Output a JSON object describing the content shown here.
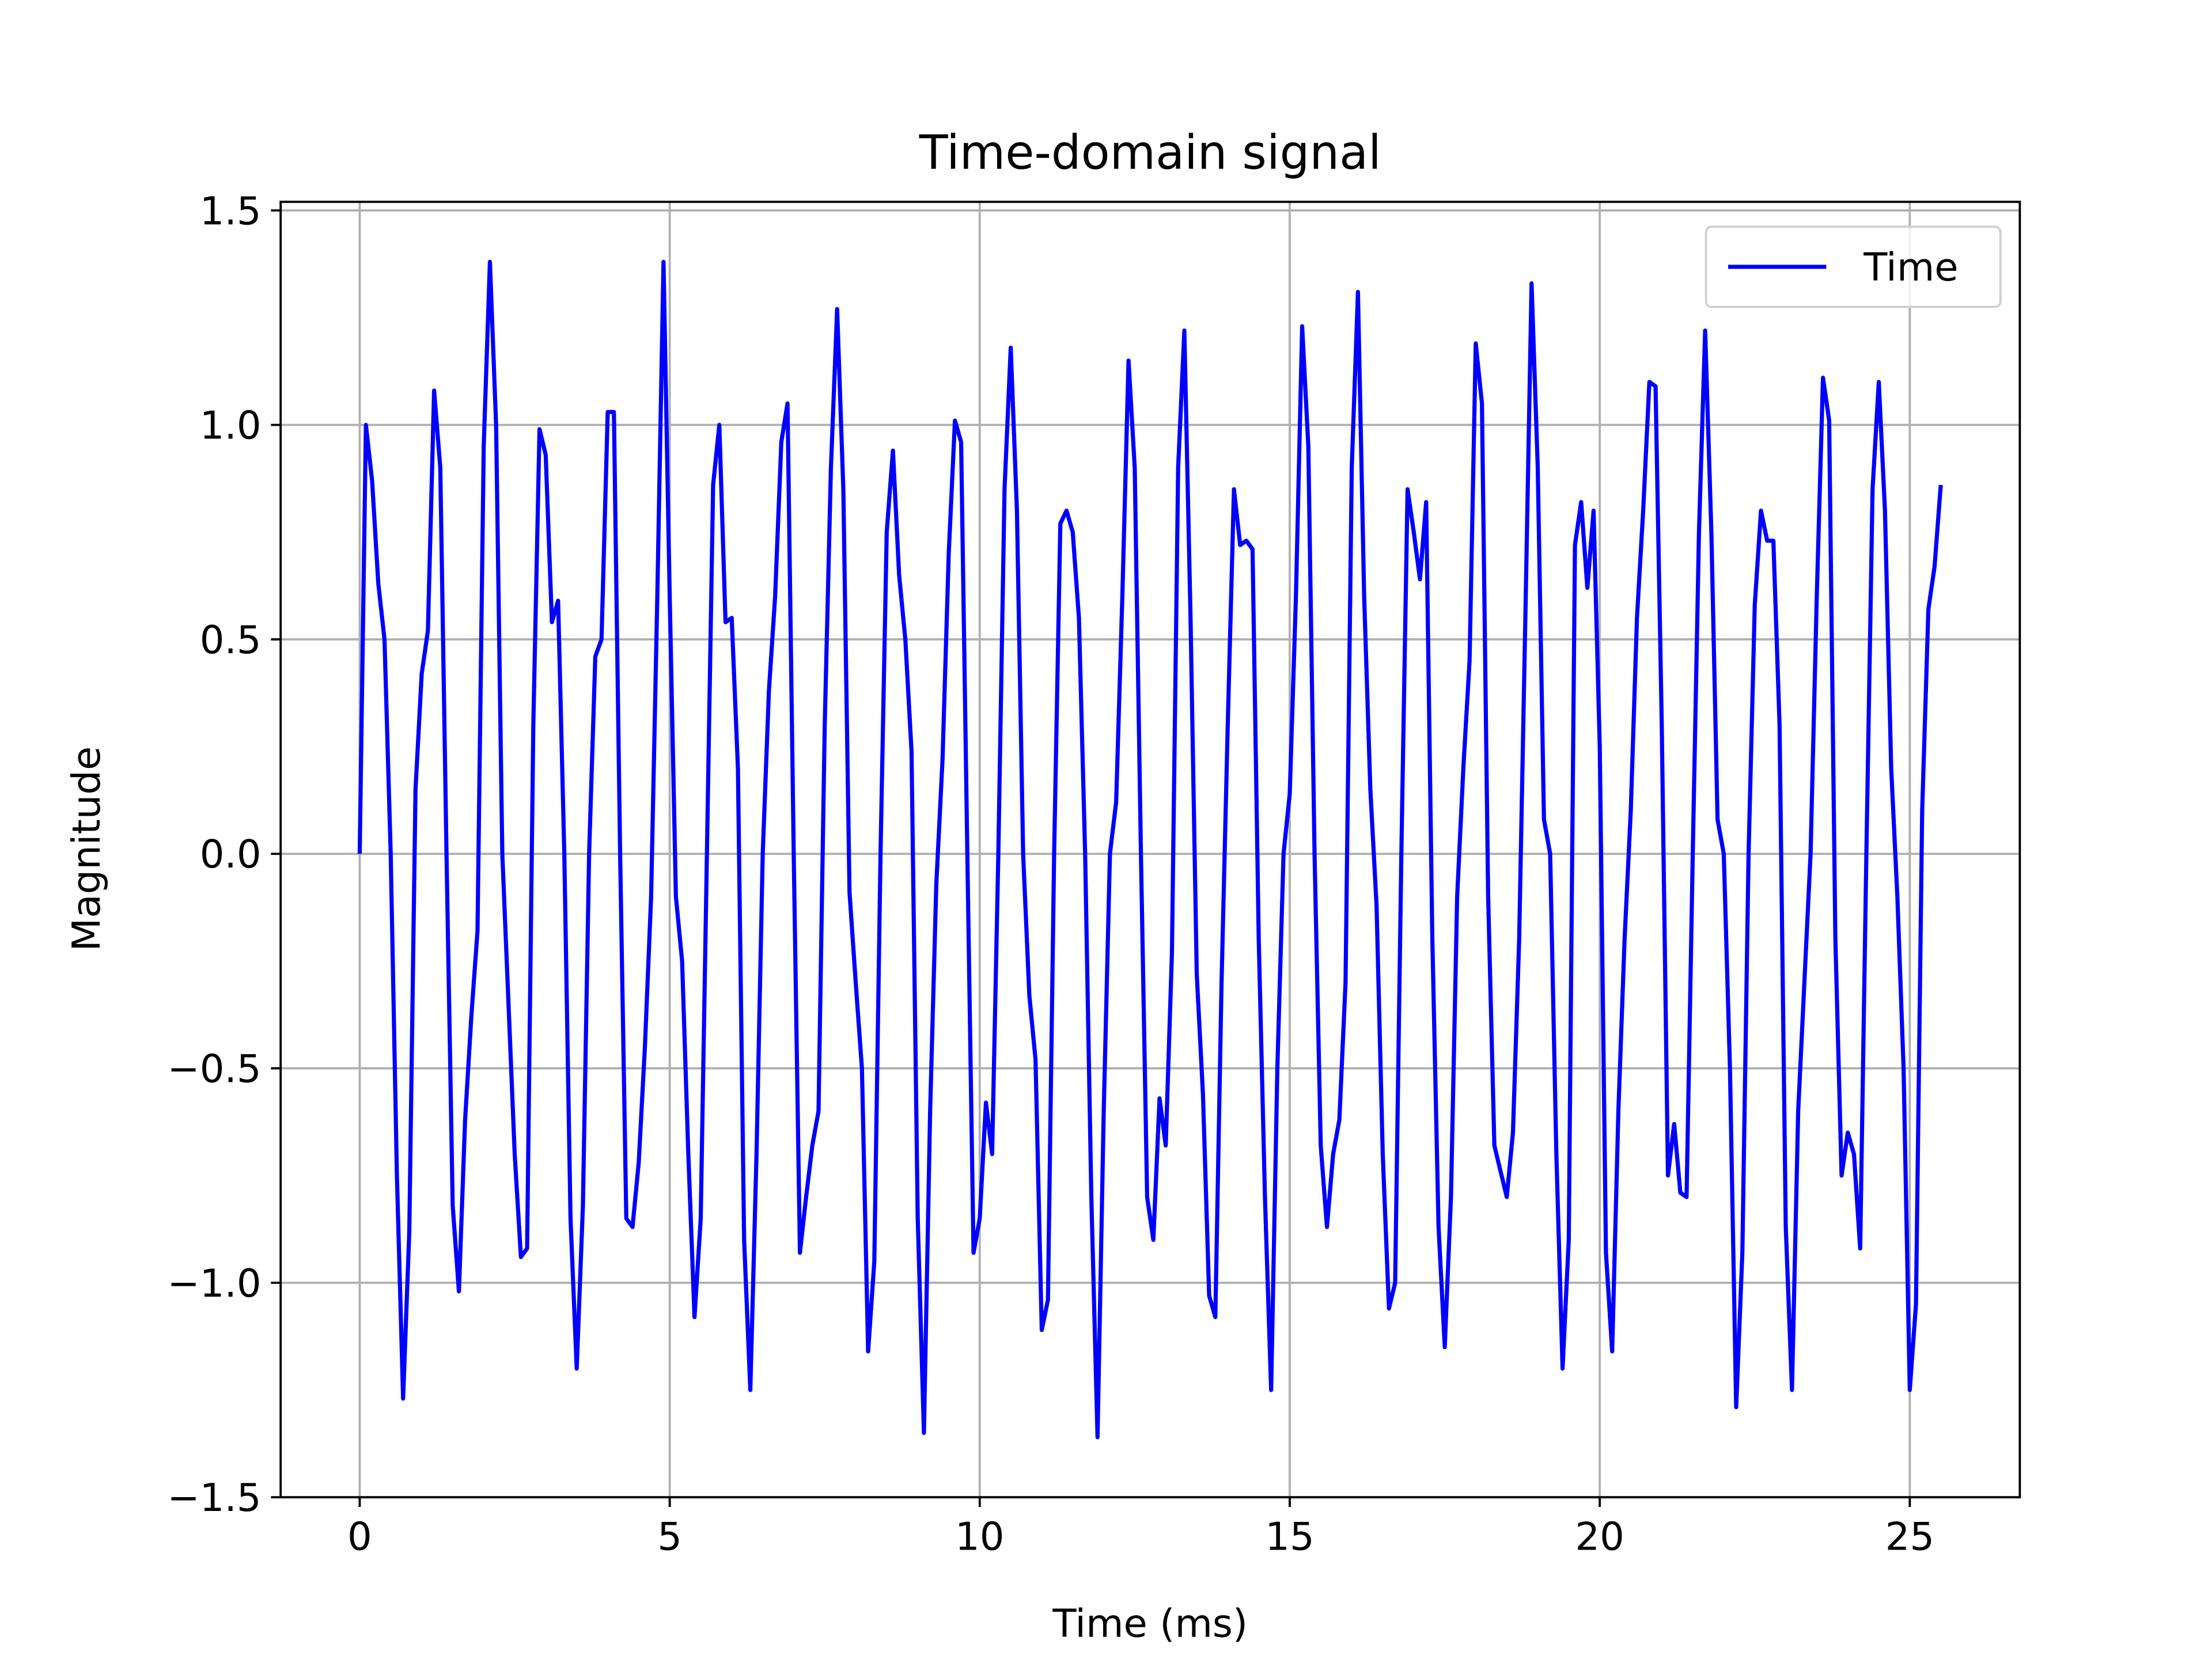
{
  "chart_data": {
    "type": "line",
    "title": "Time-domain signal",
    "x_label": "Time (ms)",
    "y_label": "Magnitude",
    "x": [
      0,
      0.1,
      0.2,
      0.3,
      0.4,
      0.5,
      0.6,
      0.7,
      0.8,
      0.9,
      1,
      1.1,
      1.2,
      1.3,
      1.4,
      1.5,
      1.6,
      1.7,
      1.8,
      1.9,
      2,
      2.1,
      2.2,
      2.3,
      2.4,
      2.5,
      2.6,
      2.7,
      2.8,
      2.9,
      3,
      3.1,
      3.2,
      3.3,
      3.4,
      3.5,
      3.6,
      3.7,
      3.8,
      3.9,
      4,
      4.1,
      4.2,
      4.3,
      4.4,
      4.5,
      4.6,
      4.7,
      4.8,
      4.9,
      5,
      5.1,
      5.2,
      5.3,
      5.4,
      5.5,
      5.6,
      5.7,
      5.8,
      5.9,
      6,
      6.1,
      6.2,
      6.3,
      6.4,
      6.5,
      6.6,
      6.7,
      6.8,
      6.9,
      7,
      7.1,
      7.2,
      7.3,
      7.4,
      7.5,
      7.6,
      7.7,
      7.8,
      7.9,
      8,
      8.1,
      8.2,
      8.3,
      8.4,
      8.5,
      8.6,
      8.7,
      8.8,
      8.9,
      9,
      9.1,
      9.2,
      9.3,
      9.4,
      9.5,
      9.6,
      9.7,
      9.8,
      9.9,
      10,
      10.1,
      10.2,
      10.3,
      10.4,
      10.5,
      10.6,
      10.7,
      10.8,
      10.9,
      11,
      11.1,
      11.2,
      11.3,
      11.4,
      11.5,
      11.6,
      11.7,
      11.8,
      11.9,
      12,
      12.1,
      12.2,
      12.3,
      12.4,
      12.5,
      12.6,
      12.7,
      12.8,
      12.9,
      13,
      13.1,
      13.2,
      13.3,
      13.4,
      13.5,
      13.6,
      13.7,
      13.8,
      13.9,
      14,
      14.1,
      14.2,
      14.3,
      14.4,
      14.5,
      14.6,
      14.7,
      14.8,
      14.9,
      15,
      15.1,
      15.2,
      15.3,
      15.4,
      15.5,
      15.6,
      15.7,
      15.8,
      15.9,
      16,
      16.1,
      16.2,
      16.3,
      16.4,
      16.5,
      16.6,
      16.7,
      16.8,
      16.9,
      17,
      17.1,
      17.2,
      17.3,
      17.4,
      17.5,
      17.6,
      17.7,
      17.8,
      17.9,
      18,
      18.1,
      18.2,
      18.3,
      18.4,
      18.5,
      18.6,
      18.7,
      18.8,
      18.9,
      19,
      19.1,
      19.2,
      19.3,
      19.4,
      19.5,
      19.6,
      19.7,
      19.8,
      19.9,
      20,
      20.1,
      20.2,
      20.3,
      20.4,
      20.5,
      20.6,
      20.7,
      20.8,
      20.9,
      21,
      21.1,
      21.2,
      21.3,
      21.4,
      21.5,
      21.6,
      21.7,
      21.8,
      21.9,
      22,
      22.1,
      22.2,
      22.3,
      22.4,
      22.5,
      22.6,
      22.7,
      22.8,
      22.9,
      23,
      23.1,
      23.2,
      23.3,
      23.4,
      23.5,
      23.6,
      23.7,
      23.8,
      23.9,
      24,
      24.1,
      24.2,
      24.3,
      24.4,
      24.5,
      24.6,
      24.7,
      24.8,
      24.9,
      25,
      25.1,
      25.2,
      25.3,
      25.4,
      25.5
    ],
    "series": [
      {
        "name": "Time",
        "color": "#0000ff",
        "values": [
          0,
          1.0,
          0.87,
          0.63,
          0.5,
          0.0,
          -0.75,
          -1.27,
          -0.88,
          0.15,
          0.42,
          0.52,
          1.08,
          0.9,
          0.0,
          -0.82,
          -1.02,
          -0.62,
          -0.38,
          -0.18,
          0.95,
          1.38,
          1.0,
          0.0,
          -0.35,
          -0.7,
          -0.94,
          -0.92,
          0.3,
          0.99,
          0.93,
          0.54,
          0.59,
          0.0,
          -0.85,
          -1.2,
          -0.82,
          0.0,
          0.46,
          0.5,
          1.03,
          1.03,
          0.0,
          -0.85,
          -0.87,
          -0.72,
          -0.45,
          -0.1,
          0.6,
          1.38,
          0.6,
          -0.1,
          -0.25,
          -0.7,
          -1.08,
          -0.85,
          0.0,
          0.86,
          1.0,
          0.54,
          0.55,
          0.2,
          -0.9,
          -1.25,
          -0.7,
          0.0,
          0.38,
          0.6,
          0.96,
          1.05,
          0.0,
          -0.93,
          -0.8,
          -0.68,
          -0.6,
          0.3,
          0.9,
          1.27,
          0.85,
          -0.09,
          -0.3,
          -0.5,
          -1.16,
          -0.95,
          0.0,
          0.75,
          0.94,
          0.65,
          0.5,
          0.24,
          -0.85,
          -1.35,
          -0.6,
          -0.07,
          0.22,
          0.7,
          1.01,
          0.96,
          0.0,
          -0.93,
          -0.85,
          -0.58,
          -0.7,
          0.0,
          0.85,
          1.18,
          0.8,
          0.0,
          -0.33,
          -0.48,
          -1.11,
          -1.04,
          0.0,
          0.77,
          0.8,
          0.75,
          0.55,
          0.0,
          -0.8,
          -1.36,
          -0.6,
          0.0,
          0.12,
          0.6,
          1.15,
          0.9,
          0.0,
          -0.8,
          -0.9,
          -0.57,
          -0.68,
          -0.23,
          0.9,
          1.22,
          0.55,
          -0.28,
          -0.56,
          -1.03,
          -1.08,
          -0.3,
          0.3,
          0.85,
          0.72,
          0.73,
          0.71,
          -0.2,
          -0.8,
          -1.25,
          -0.5,
          0.0,
          0.14,
          0.6,
          1.23,
          0.95,
          0.0,
          -0.68,
          -0.87,
          -0.7,
          -0.62,
          -0.3,
          0.9,
          1.31,
          0.6,
          0.15,
          -0.12,
          -0.7,
          -1.06,
          -1.0,
          0.0,
          0.85,
          0.75,
          0.64,
          0.82,
          -0.2,
          -0.87,
          -1.15,
          -0.8,
          -0.1,
          0.2,
          0.45,
          1.19,
          1.05,
          -0.1,
          -0.68,
          -0.74,
          -0.8,
          -0.65,
          -0.2,
          0.55,
          1.33,
          0.9,
          0.08,
          0.0,
          -0.7,
          -1.2,
          -0.9,
          0.72,
          0.82,
          0.62,
          0.8,
          0.25,
          -0.93,
          -1.16,
          -0.6,
          -0.2,
          0.1,
          0.55,
          0.8,
          1.1,
          1.09,
          0.3,
          -0.75,
          -0.63,
          -0.79,
          -0.8,
          0.0,
          0.75,
          1.22,
          0.75,
          0.08,
          0.0,
          -0.5,
          -1.29,
          -0.93,
          0.0,
          0.58,
          0.8,
          0.73,
          0.73,
          0.3,
          -0.87,
          -1.25,
          -0.6,
          -0.3,
          0.0,
          0.6,
          1.11,
          1.01,
          -0.2,
          -0.75,
          -0.65,
          -0.7,
          -0.92,
          0.0,
          0.85,
          1.1,
          0.8,
          0.2,
          -0.1,
          -0.5,
          -1.25,
          -1.05,
          0.1,
          0.57,
          0.67,
          0.86
        ]
      }
    ],
    "xlim": [
      -1.275,
      26.775
    ],
    "ylim": [
      -1.5,
      1.52
    ],
    "xticks": [
      0,
      5,
      10,
      15,
      20,
      25
    ],
    "yticks": [
      {
        "value": -1.5,
        "label": "−1.5"
      },
      {
        "value": -1.0,
        "label": "−1.0"
      },
      {
        "value": -0.5,
        "label": "−0.5"
      },
      {
        "value": 0,
        "label": "0.0"
      },
      0.5,
      {
        "value": 1.0,
        "label": "1.0"
      },
      1.5
    ],
    "grid": true,
    "legend": "upper right"
  }
}
